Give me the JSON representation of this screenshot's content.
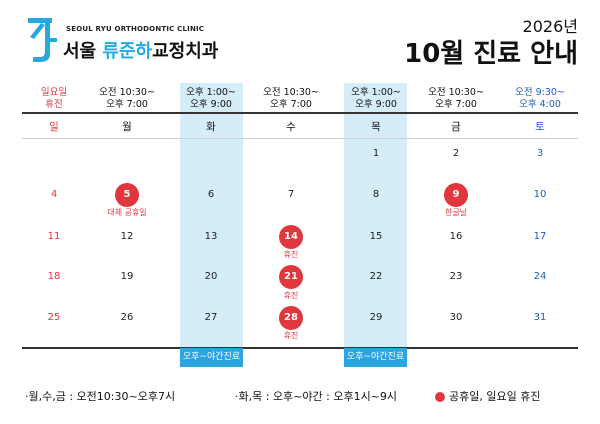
{
  "clinic": {
    "name_en": "SEOUL RYU ORTHODONTIC CLINIC",
    "name_prefix": "서울 ",
    "name_highlight": "류준하",
    "name_suffix": "교정치과",
    "logo_icon": "clinic-logo-icon"
  },
  "header": {
    "year": "2026년",
    "title": "10월 진료 안내"
  },
  "columns": [
    {
      "day": "일",
      "hours": [
        "일요일",
        "휴진"
      ]
    },
    {
      "day": "월",
      "hours": [
        "오전 10:30~",
        "오후 7:00"
      ]
    },
    {
      "day": "화",
      "hours": [
        "오후 1:00~",
        "오후 9:00"
      ]
    },
    {
      "day": "수",
      "hours": [
        "오전 10:30~",
        "오후 7:00"
      ]
    },
    {
      "day": "목",
      "hours": [
        "오후 1:00~",
        "오후 9:00"
      ]
    },
    {
      "day": "금",
      "hours": [
        "오전 10:30~",
        "오후 7:00"
      ]
    },
    {
      "day": "토",
      "hours": [
        "오전 9:30~",
        "오후 4:00"
      ]
    }
  ],
  "weeks": [
    [
      {
        "date": ""
      },
      {
        "date": ""
      },
      {
        "date": ""
      },
      {
        "date": ""
      },
      {
        "date": "1"
      },
      {
        "date": "2"
      },
      {
        "date": "3"
      }
    ],
    [
      {
        "date": "4"
      },
      {
        "date": "5",
        "closed": true,
        "note": "대체 공휴일"
      },
      {
        "date": "6"
      },
      {
        "date": "7"
      },
      {
        "date": "8"
      },
      {
        "date": "9",
        "closed": true,
        "note": "한글날"
      },
      {
        "date": "10"
      }
    ],
    [
      {
        "date": "11"
      },
      {
        "date": "12"
      },
      {
        "date": "13"
      },
      {
        "date": "14",
        "closed": true,
        "note": "휴진"
      },
      {
        "date": "15"
      },
      {
        "date": "16"
      },
      {
        "date": "17"
      }
    ],
    [
      {
        "date": "18"
      },
      {
        "date": "19"
      },
      {
        "date": "20"
      },
      {
        "date": "21",
        "closed": true,
        "note": "휴진"
      },
      {
        "date": "22"
      },
      {
        "date": "23"
      },
      {
        "date": "24"
      }
    ],
    [
      {
        "date": "25"
      },
      {
        "date": "26"
      },
      {
        "date": "27"
      },
      {
        "date": "28",
        "closed": true,
        "note": "휴진"
      },
      {
        "date": "29"
      },
      {
        "date": "30"
      },
      {
        "date": "31"
      }
    ]
  ],
  "evening_label": "오후~야간진료",
  "legend": {
    "mwf": "·월,수,금 : 오전10:30~오후7시",
    "tt": "·화,목 : 오후~야간 : 오후1시~9시",
    "holiday": "공휴일, 일요일 휴진",
    "holiday_icon": "red-dot-icon"
  },
  "colors": {
    "red": "#e0363d",
    "blue": "#1d5ac9",
    "sky": "#2ba5df",
    "sky_light": "#d4edf8",
    "logo": "#29a8e0"
  }
}
